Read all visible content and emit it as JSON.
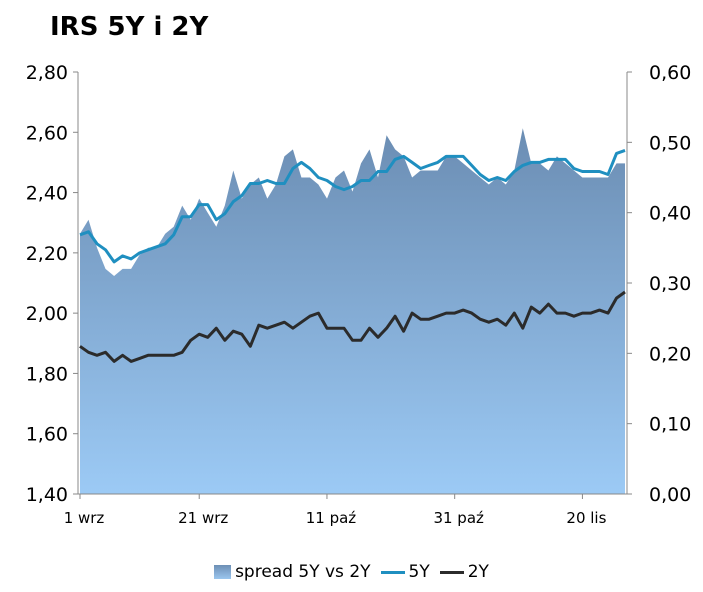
{
  "chart_data": {
    "type": "line",
    "title": "IRS 5Y i 2Y",
    "left_axis": {
      "ylim": [
        1.4,
        2.8
      ],
      "ticks": [
        "1,40",
        "1,60",
        "1,80",
        "2,00",
        "2,20",
        "2,40",
        "2,60",
        "2,80"
      ]
    },
    "right_axis": {
      "ylim": [
        0.0,
        0.6
      ],
      "ticks": [
        "0,00",
        "0,10",
        "0,20",
        "0,30",
        "0,40",
        "0,50",
        "0,60"
      ]
    },
    "x_ticks": [
      {
        "label": "1 wrz",
        "index": 0
      },
      {
        "label": "21 wrz",
        "index": 14
      },
      {
        "label": "11 paź",
        "index": 29
      },
      {
        "label": "31 paź",
        "index": 44
      },
      {
        "label": "20 lis",
        "index": 59
      }
    ],
    "series": [
      {
        "name": "spread 5Y vs 2Y",
        "axis": "right",
        "kind": "area",
        "color": "#8fb6df",
        "values": [
          0.37,
          0.39,
          0.35,
          0.32,
          0.31,
          0.32,
          0.32,
          0.34,
          0.35,
          0.35,
          0.37,
          0.38,
          0.41,
          0.39,
          0.42,
          0.4,
          0.38,
          0.41,
          0.46,
          0.42,
          0.44,
          0.45,
          0.42,
          0.44,
          0.48,
          0.49,
          0.45,
          0.45,
          0.44,
          0.42,
          0.45,
          0.46,
          0.43,
          0.47,
          0.49,
          0.45,
          0.51,
          0.49,
          0.48,
          0.45,
          0.46,
          0.46,
          0.46,
          0.48,
          0.48,
          0.47,
          0.46,
          0.45,
          0.44,
          0.45,
          0.44,
          0.46,
          0.52,
          0.47,
          0.47,
          0.46,
          0.48,
          0.47,
          0.46,
          0.45,
          0.45,
          0.45,
          0.45,
          0.47,
          0.47
        ]
      },
      {
        "name": "5Y",
        "axis": "left",
        "kind": "line",
        "color": "#1f8fc0",
        "values": [
          2.26,
          2.27,
          2.23,
          2.21,
          2.17,
          2.19,
          2.18,
          2.2,
          2.21,
          2.22,
          2.23,
          2.26,
          2.32,
          2.32,
          2.36,
          2.36,
          2.31,
          2.33,
          2.37,
          2.39,
          2.43,
          2.43,
          2.44,
          2.43,
          2.43,
          2.48,
          2.5,
          2.48,
          2.45,
          2.44,
          2.42,
          2.41,
          2.42,
          2.44,
          2.44,
          2.47,
          2.47,
          2.51,
          2.52,
          2.5,
          2.48,
          2.49,
          2.5,
          2.52,
          2.52,
          2.52,
          2.49,
          2.46,
          2.44,
          2.45,
          2.44,
          2.47,
          2.49,
          2.5,
          2.5,
          2.51,
          2.51,
          2.51,
          2.48,
          2.47,
          2.47,
          2.47,
          2.46,
          2.53,
          2.54
        ]
      },
      {
        "name": "2Y",
        "axis": "left",
        "kind": "line",
        "color": "#2b2b2b",
        "values": [
          1.89,
          1.87,
          1.86,
          1.87,
          1.84,
          1.86,
          1.84,
          1.85,
          1.86,
          1.86,
          1.86,
          1.86,
          1.87,
          1.91,
          1.93,
          1.92,
          1.95,
          1.91,
          1.94,
          1.93,
          1.89,
          1.96,
          1.95,
          1.96,
          1.97,
          1.95,
          1.97,
          1.99,
          2.0,
          1.95,
          1.95,
          1.95,
          1.91,
          1.91,
          1.95,
          1.92,
          1.95,
          1.99,
          1.94,
          2.0,
          1.98,
          1.98,
          1.99,
          2.0,
          2.0,
          2.01,
          2.0,
          1.98,
          1.97,
          1.98,
          1.96,
          2.0,
          1.95,
          2.02,
          2.0,
          2.03,
          2.0,
          2.0,
          1.99,
          2.0,
          2.0,
          2.01,
          2.0,
          2.05,
          2.07
        ]
      }
    ],
    "legend_position": "bottom",
    "grid": false
  }
}
